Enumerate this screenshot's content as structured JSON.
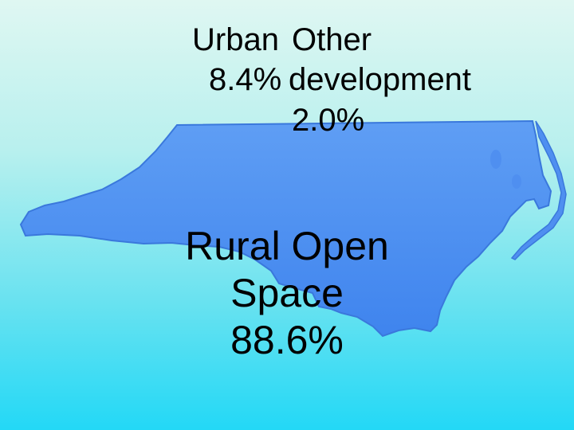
{
  "slide": {
    "labels": {
      "urban": {
        "name": "Urban",
        "pct": "8.4%"
      },
      "other": {
        "name_line1": "Other",
        "name_line2": "development",
        "pct": "2.0%"
      },
      "rural": {
        "line1": "Rural Open",
        "line2": "Space",
        "pct": "88.6%"
      }
    },
    "map": {
      "icon": "north-carolina-state-silhouette",
      "fill": "#4f8ff0",
      "edge": "#2f6fd6"
    }
  }
}
